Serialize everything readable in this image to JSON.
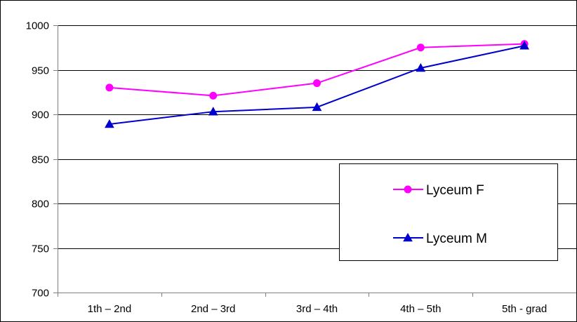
{
  "chart_data": {
    "type": "line",
    "title": "",
    "xlabel": "",
    "ylabel": "",
    "categories": [
      "1th – 2nd",
      "2nd – 3rd",
      "3rd – 4th",
      "4th – 5th",
      "5th - grad"
    ],
    "ylim": [
      700,
      1000
    ],
    "yticks": [
      700,
      750,
      800,
      850,
      900,
      950,
      1000
    ],
    "grid": true,
    "legend_position": "lower-right",
    "series": [
      {
        "name": "Lyceum F",
        "color": "#ff00ff",
        "marker": "circle",
        "values": [
          930,
          921,
          935,
          975,
          979
        ]
      },
      {
        "name": "Lyceum M",
        "color": "#0000cc",
        "marker": "triangle",
        "values": [
          889,
          903,
          908,
          952,
          977
        ]
      }
    ]
  }
}
